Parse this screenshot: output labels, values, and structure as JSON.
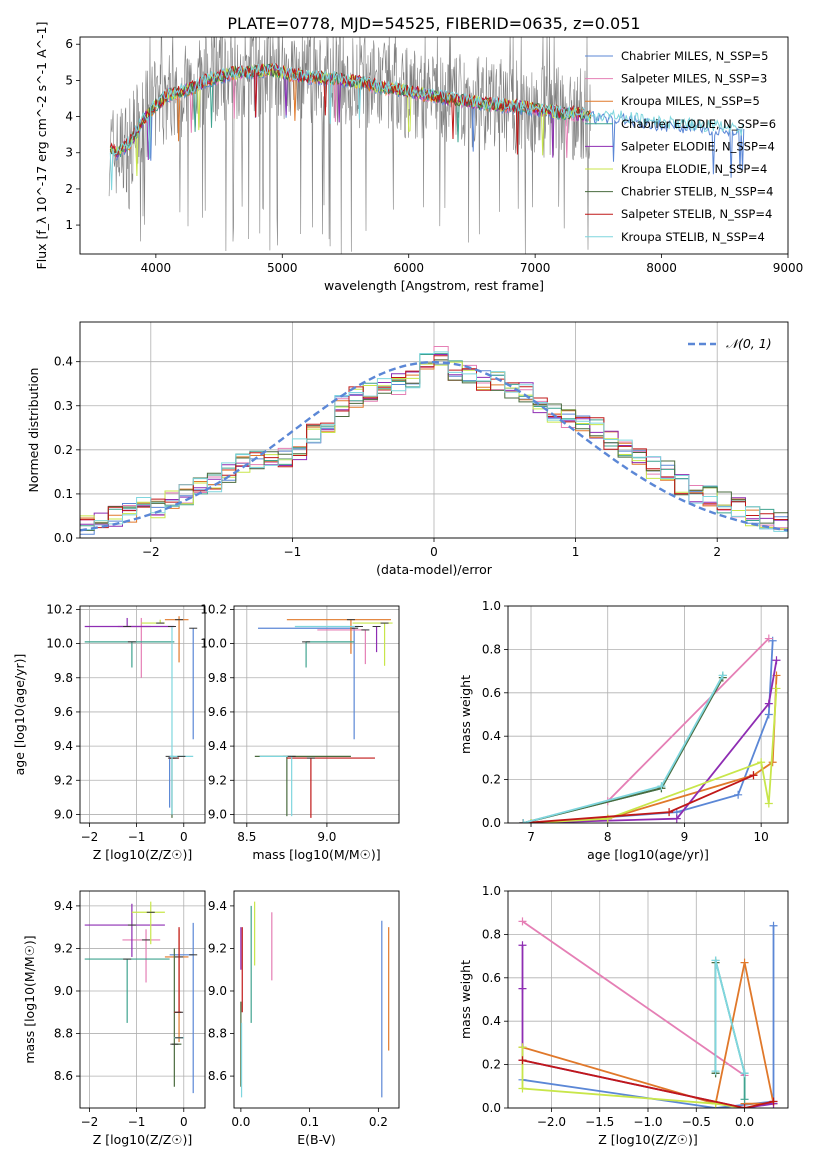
{
  "colors": {
    "chabrier_miles": "#5b87d6",
    "salpeter_miles": "#e57fb5",
    "kroupa_miles": "#e0782a",
    "chabrier_elodie": "#3fa38f",
    "salpeter_elodie": "#8e2db3",
    "kroupa_elodie": "#c8e64a",
    "chabrier_stelib": "#4a6b3f",
    "salpeter_stelib": "#c01818",
    "kroupa_stelib": "#7fd6de",
    "data": "#808080"
  },
  "chart_data": [
    {
      "id": "spectrum",
      "type": "line",
      "title": "PLATE=0778, MJD=54525, FIBERID=0635, z=0.051",
      "xlabel": "wavelength [Angstrom, rest frame]",
      "ylabel": "Flux [f_λ 10^-17 erg cm^-2 s^-1 A^-1]",
      "xlim": [
        3400,
        9000
      ],
      "ylim": [
        0.2,
        6.2
      ],
      "xticks": [
        "4000",
        "5000",
        "6000",
        "7000",
        "8000",
        "9000"
      ],
      "yticks": [
        "1",
        "2",
        "3",
        "4",
        "5",
        "6"
      ],
      "legend_position": "top-right",
      "legend": [
        "Chabrier MILES, N_SSP=5",
        "Salpeter MILES, N_SSP=3",
        "Kroupa MILES, N_SSP=5",
        "Chabrier ELODIE, N_SSP=6",
        "Salpeter ELODIE, N_SSP=4",
        "Kroupa ELODIE, N_SSP=4",
        "Chabrier STELIB, N_SSP=4",
        "Salpeter STELIB, N_SSP=4",
        "Kroupa STELIB, N_SSP=4"
      ],
      "continuum": {
        "x": [
          3650,
          3700,
          3800,
          3900,
          4000,
          4100,
          4200,
          4300,
          4400,
          4500,
          4600,
          4700,
          4800,
          4900,
          5000,
          5200,
          5400,
          5600,
          5800,
          6000,
          6200,
          6400,
          6600,
          6800,
          7000,
          7200,
          7400,
          7500,
          7600,
          7700,
          7800,
          8000,
          8200,
          8400,
          8600,
          8650
        ],
        "y": [
          3.1,
          3.0,
          3.3,
          3.9,
          4.3,
          4.6,
          4.7,
          4.8,
          5.0,
          5.1,
          5.2,
          5.2,
          5.25,
          5.3,
          5.2,
          5.1,
          5.05,
          4.95,
          4.8,
          4.7,
          4.55,
          4.45,
          4.35,
          4.3,
          4.2,
          4.1,
          4.05,
          4.0,
          4.0,
          3.95,
          3.9,
          3.8,
          3.75,
          3.7,
          3.6,
          3.6
        ]
      },
      "data_x_range": [
        3630,
        7440
      ]
    },
    {
      "id": "residuals",
      "type": "step",
      "xlabel": "(data-model)/error",
      "ylabel": "Normed distribution",
      "xlim": [
        -2.5,
        2.5
      ],
      "ylim": [
        0,
        0.49
      ],
      "xticks": [
        "−2",
        "−1",
        "0",
        "1",
        "2"
      ],
      "yticks": [
        "0.0",
        "0.1",
        "0.2",
        "0.3",
        "0.4"
      ],
      "legend": [
        "𝒩(0, 1)"
      ],
      "legend_position": "top-right",
      "bin_edges_start": -2.5,
      "bin_width": 0.1,
      "base_hist": [
        0.03,
        0.035,
        0.05,
        0.06,
        0.07,
        0.065,
        0.085,
        0.1,
        0.115,
        0.125,
        0.15,
        0.17,
        0.175,
        0.18,
        0.185,
        0.2,
        0.24,
        0.26,
        0.3,
        0.32,
        0.33,
        0.34,
        0.35,
        0.36,
        0.4,
        0.41,
        0.38,
        0.375,
        0.36,
        0.355,
        0.34,
        0.33,
        0.3,
        0.28,
        0.27,
        0.26,
        0.25,
        0.225,
        0.2,
        0.19,
        0.16,
        0.15,
        0.12,
        0.1,
        0.095,
        0.08,
        0.07,
        0.05,
        0.04,
        0.035
      ]
    },
    {
      "id": "age_vs_Z",
      "type": "errorbar",
      "xlabel": "Z [log10(Z/Z☉)]",
      "ylabel": "age  [log10(age/yr)]",
      "xlim": [
        -2.2,
        0.45
      ],
      "ylim": [
        8.95,
        10.22
      ],
      "xticks": [
        "−2",
        "−1",
        "0"
      ],
      "yticks": [
        "9.0",
        "9.2",
        "9.4",
        "9.6",
        "9.8",
        "10.0",
        "10.2"
      ],
      "points": [
        {
          "model": "chabrier_miles",
          "x": 0.2,
          "y": 10.09,
          "xerr": [
            0.0,
            0.0
          ],
          "yerr": [
            0.65,
            0.0
          ]
        },
        {
          "model": "chabrier_miles",
          "x": -0.3,
          "y": 9.34,
          "xerr": [
            0.0,
            0.0
          ],
          "yerr": [
            0.3,
            0.0
          ]
        },
        {
          "model": "salpeter_miles",
          "x": -0.9,
          "y": 10.1,
          "xerr": [
            0.5,
            0.2
          ],
          "yerr": [
            0.3,
            0.05
          ]
        },
        {
          "model": "kroupa_miles",
          "x": -0.1,
          "y": 10.14,
          "xerr": [
            0.3,
            0.2
          ],
          "yerr": [
            0.25,
            0.02
          ]
        },
        {
          "model": "chabrier_elodie",
          "x": -1.1,
          "y": 10.01,
          "xerr": [
            1.0,
            0.9
          ],
          "yerr": [
            0.15,
            0.0
          ]
        },
        {
          "model": "salpeter_elodie",
          "x": -1.2,
          "y": 10.1,
          "xerr": [
            0.9,
            1.0
          ],
          "yerr": [
            0.0,
            0.05
          ]
        },
        {
          "model": "kroupa_elodie",
          "x": -0.5,
          "y": 10.12,
          "xerr": [
            0.4,
            0.1
          ],
          "yerr": [
            0.0,
            0.02
          ]
        },
        {
          "model": "chabrier_stelib",
          "x": -0.25,
          "y": 9.33,
          "xerr": [
            0.05,
            0.05
          ],
          "yerr": [
            0.35,
            0.0
          ]
        },
        {
          "model": "salpeter_stelib",
          "x": -0.2,
          "y": 9.33,
          "xerr": [
            0.1,
            0.1
          ],
          "yerr": [
            0.0,
            0.0
          ]
        },
        {
          "model": "kroupa_stelib",
          "x": -0.05,
          "y": 9.34,
          "xerr": [
            0.25,
            0.25
          ],
          "yerr": [
            0.0,
            0.0
          ]
        },
        {
          "model": "kroupa_stelib",
          "x": -0.25,
          "y": 10.1,
          "xerr": [
            0.0,
            0.0
          ],
          "yerr": [
            1.1,
            0.0
          ]
        }
      ]
    },
    {
      "id": "age_vs_mass",
      "type": "errorbar",
      "xlabel": "mass [log10(M/M☉)]",
      "ylabel": "",
      "xlim": [
        8.42,
        9.45
      ],
      "ylim": [
        8.95,
        10.22
      ],
      "xticks": [
        "8.5",
        "9.0"
      ],
      "yticks": [
        "9.0",
        "9.2",
        "9.4",
        "9.6",
        "9.8",
        "10.0",
        "10.2"
      ],
      "points": [
        {
          "model": "chabrier_miles",
          "x": 9.17,
          "y": 10.09,
          "xerr": [
            0.6,
            0.0
          ],
          "yerr": [
            0.65,
            0.0
          ]
        },
        {
          "model": "salpeter_miles",
          "x": 9.24,
          "y": 10.08,
          "xerr": [
            0.3,
            0.0
          ],
          "yerr": [
            0.2,
            0.0
          ]
        },
        {
          "model": "kroupa_miles",
          "x": 9.15,
          "y": 10.14,
          "xerr": [
            0.4,
            0.25
          ],
          "yerr": [
            0.2,
            0.0
          ]
        },
        {
          "model": "chabrier_elodie",
          "x": 8.87,
          "y": 10.01,
          "xerr": [
            0.0,
            0.3
          ],
          "yerr": [
            0.15,
            0.0
          ]
        },
        {
          "model": "salpeter_elodie",
          "x": 9.31,
          "y": 10.1,
          "xerr": [
            0.0,
            0.0
          ],
          "yerr": [
            0.15,
            0.0
          ]
        },
        {
          "model": "kroupa_elodie",
          "x": 9.36,
          "y": 10.12,
          "xerr": [
            0.2,
            0.05
          ],
          "yerr": [
            0.25,
            0.0
          ]
        },
        {
          "model": "chabrier_stelib",
          "x": 8.75,
          "y": 9.34,
          "xerr": [
            0.2,
            0.4
          ],
          "yerr": [
            0.35,
            0.0
          ]
        },
        {
          "model": "salpeter_stelib",
          "x": 8.9,
          "y": 9.33,
          "xerr": [
            0.15,
            0.4
          ],
          "yerr": [
            0.35,
            0.0
          ]
        },
        {
          "model": "kroupa_stelib",
          "x": 8.78,
          "y": 9.34,
          "xerr": [
            0.2,
            0.0
          ],
          "yerr": [
            0.35,
            0.0
          ]
        },
        {
          "model": "kroupa_stelib",
          "x": 9.2,
          "y": 10.1,
          "xerr": [
            0.4,
            0.0
          ],
          "yerr": [
            0.0,
            0.0
          ]
        }
      ]
    },
    {
      "id": "weight_vs_age",
      "type": "line",
      "xlabel": "age  [log10(age/yr)]",
      "ylabel": "mass weight",
      "xlim": [
        6.7,
        10.35
      ],
      "ylim": [
        0,
        1.0
      ],
      "xticks": [
        "7",
        "8",
        "9",
        "10"
      ],
      "yticks": [
        "0.0",
        "0.2",
        "0.4",
        "0.6",
        "0.8",
        "1.0"
      ],
      "series": [
        {
          "model": "chabrier_miles",
          "x": [
            7.0,
            8.9,
            9.7,
            10.1,
            10.15
          ],
          "y": [
            0.0,
            0.05,
            0.13,
            0.5,
            0.84
          ]
        },
        {
          "model": "salpeter_miles",
          "x": [
            6.9,
            8.0,
            10.1
          ],
          "y": [
            0.0,
            0.1,
            0.85
          ]
        },
        {
          "model": "kroupa_miles",
          "x": [
            7.0,
            8.0,
            9.9,
            10.15,
            10.2
          ],
          "y": [
            0.0,
            0.02,
            0.22,
            0.28,
            0.68
          ]
        },
        {
          "model": "chabrier_elodie",
          "x": [
            6.9,
            8.7,
            9.5
          ],
          "y": [
            0.0,
            0.16,
            0.68
          ]
        },
        {
          "model": "salpeter_elodie",
          "x": [
            6.9,
            8.9,
            10.1,
            10.2
          ],
          "y": [
            0.0,
            0.02,
            0.55,
            0.75
          ]
        },
        {
          "model": "kroupa_elodie",
          "x": [
            7.0,
            8.0,
            10.0,
            10.1,
            10.2
          ],
          "y": [
            0.0,
            0.02,
            0.28,
            0.09,
            0.62
          ]
        },
        {
          "model": "chabrier_stelib",
          "x": [
            6.9,
            8.7,
            9.5
          ],
          "y": [
            0.0,
            0.16,
            0.67
          ]
        },
        {
          "model": "salpeter_stelib",
          "x": [
            6.9,
            8.8,
            9.9
          ],
          "y": [
            0.0,
            0.05,
            0.22
          ]
        },
        {
          "model": "kroupa_stelib",
          "x": [
            6.9,
            8.7,
            9.5
          ],
          "y": [
            0.0,
            0.17,
            0.68
          ]
        }
      ]
    },
    {
      "id": "mass_vs_Z",
      "type": "errorbar",
      "xlabel": "Z [log10(Z/Z☉)]",
      "ylabel": "mass [log10(M/M☉)]",
      "xlim": [
        -2.2,
        0.45
      ],
      "ylim": [
        8.45,
        9.47
      ],
      "xticks": [
        "−2",
        "−1",
        "0"
      ],
      "yticks": [
        "8.6",
        "8.8",
        "9.0",
        "9.2",
        "9.4"
      ],
      "points": [
        {
          "model": "chabrier_miles",
          "x": 0.2,
          "y": 9.17,
          "xerr": [
            0.5,
            0.0
          ],
          "yerr": [
            0.65,
            0.15
          ]
        },
        {
          "model": "salpeter_miles",
          "x": -0.8,
          "y": 9.24,
          "xerr": [
            0.5,
            0.3
          ],
          "yerr": [
            0.2,
            0.05
          ]
        },
        {
          "model": "kroupa_miles",
          "x": -0.1,
          "y": 9.16,
          "xerr": [
            0.3,
            0.2
          ],
          "yerr": [
            0.4,
            0.13
          ]
        },
        {
          "model": "chabrier_elodie",
          "x": -1.2,
          "y": 9.15,
          "xerr": [
            0.9,
            0.9
          ],
          "yerr": [
            0.3,
            0.0
          ]
        },
        {
          "model": "salpeter_elodie",
          "x": -1.1,
          "y": 9.31,
          "xerr": [
            1.0,
            0.7
          ],
          "yerr": [
            0.15,
            0.1
          ]
        },
        {
          "model": "kroupa_elodie",
          "x": -0.7,
          "y": 9.37,
          "xerr": [
            0.4,
            0.3
          ],
          "yerr": [
            0.15,
            0.05
          ]
        },
        {
          "model": "chabrier_stelib",
          "x": -0.2,
          "y": 8.75,
          "xerr": [
            0.05,
            0.15
          ],
          "yerr": [
            0.2,
            0.45
          ]
        },
        {
          "model": "salpeter_stelib",
          "x": -0.1,
          "y": 8.9,
          "xerr": [
            0.1,
            0.05
          ],
          "yerr": [
            0.0,
            0.4
          ]
        },
        {
          "model": "kroupa_stelib",
          "x": -0.1,
          "y": 8.78,
          "xerr": [
            0.1,
            0.1
          ],
          "yerr": [
            0.0,
            0.0
          ]
        }
      ]
    },
    {
      "id": "ebv",
      "type": "errorbar",
      "xlabel": "E(B-V)",
      "ylabel": "",
      "xlim": [
        -0.01,
        0.23
      ],
      "ylim": [
        8.45,
        9.47
      ],
      "xticks": [
        "0.0",
        "0.1",
        "0.2"
      ],
      "yticks": [
        "8.6",
        "8.8",
        "9.0",
        "9.2",
        "9.4"
      ],
      "vlines": [
        {
          "model": "chabrier_miles",
          "x": 0.205,
          "y": [
            8.5,
            9.33
          ]
        },
        {
          "model": "salpeter_miles",
          "x": 0.045,
          "y": [
            9.05,
            9.37
          ]
        },
        {
          "model": "kroupa_miles",
          "x": 0.215,
          "y": [
            8.72,
            9.3
          ]
        },
        {
          "model": "chabrier_elodie",
          "x": 0.015,
          "y": [
            8.85,
            9.4
          ]
        },
        {
          "model": "salpeter_elodie",
          "x": 0.0,
          "y": [
            9.1,
            9.3
          ]
        },
        {
          "model": "kroupa_elodie",
          "x": 0.02,
          "y": [
            9.12,
            9.42
          ]
        },
        {
          "model": "chabrier_stelib",
          "x": 0.0,
          "y": [
            8.55,
            8.95
          ]
        },
        {
          "model": "salpeter_stelib",
          "x": 0.002,
          "y": [
            8.9,
            9.3
          ]
        },
        {
          "model": "kroupa_stelib",
          "x": 0.001,
          "y": [
            8.5,
            8.85
          ]
        }
      ]
    },
    {
      "id": "weight_vs_Z",
      "type": "line",
      "xlabel": "Z [log10(Z/Z☉)]",
      "ylabel": "mass weight",
      "xlim": [
        -2.45,
        0.45
      ],
      "ylim": [
        0,
        1.0
      ],
      "xticks": [
        "−2.0",
        "−1.5",
        "−1.0",
        "−0.5",
        "0.0"
      ],
      "yticks": [
        "0.0",
        "0.2",
        "0.4",
        "0.6",
        "0.8",
        "1.0"
      ],
      "series": [
        {
          "model": "chabrier_miles",
          "x": [
            -2.3,
            -0.3,
            0.3,
            0.3
          ],
          "y": [
            0.13,
            0.0,
            0.03,
            0.84
          ]
        },
        {
          "model": "salpeter_miles",
          "x": [
            -2.3,
            0.0
          ],
          "y": [
            0.86,
            0.15
          ]
        },
        {
          "model": "kroupa_miles",
          "x": [
            -2.3,
            -0.3,
            0.0,
            0.3,
            0.0
          ],
          "y": [
            0.28,
            0.02,
            0.67,
            0.02,
            0.02
          ]
        },
        {
          "model": "chabrier_elodie",
          "x": [
            -0.3,
            -0.3,
            0.0,
            0.0
          ],
          "y": [
            0.16,
            0.68,
            0.16,
            0.04
          ]
        },
        {
          "model": "salpeter_elodie",
          "x": [
            -2.3,
            -2.3,
            -2.3,
            0.0,
            0.3
          ],
          "y": [
            0.75,
            0.55,
            0.22,
            0.0,
            0.02
          ]
        },
        {
          "model": "kroupa_elodie",
          "x": [
            -2.3,
            -2.3,
            -0.3,
            0.0
          ],
          "y": [
            0.28,
            0.09,
            0.02,
            0.0
          ]
        },
        {
          "model": "chabrier_stelib",
          "x": [
            -0.3,
            -0.3
          ],
          "y": [
            0.16,
            0.67
          ]
        },
        {
          "model": "salpeter_stelib",
          "x": [
            -2.3,
            0.0,
            0.3
          ],
          "y": [
            0.22,
            0.0,
            0.03
          ]
        },
        {
          "model": "kroupa_stelib",
          "x": [
            -0.3,
            -0.3,
            0.0
          ],
          "y": [
            0.17,
            0.68,
            0.16
          ]
        }
      ]
    }
  ]
}
